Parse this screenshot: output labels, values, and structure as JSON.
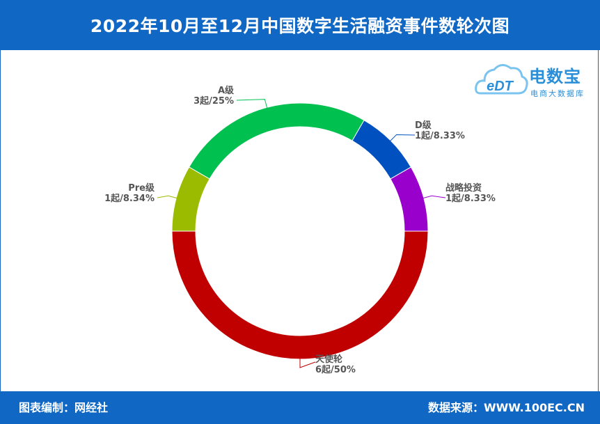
{
  "title": "2022年10月至12月中国数字生活融资事件数轮次图",
  "footer": {
    "left": "图表编制：网经社",
    "right": "数据来源：WWW.100EC.CN"
  },
  "logo": {
    "brand": "电数宝",
    "sub": "电商大数据库",
    "mark": "eDT"
  },
  "chart_data": {
    "type": "pie",
    "donut": true,
    "title": "2022年10月至12月中国数字生活融资事件数轮次图",
    "slices": [
      {
        "name": "天使轮",
        "count": 6,
        "count_label": "6起",
        "percent": 50,
        "percent_label": "50%",
        "color": "#c00000"
      },
      {
        "name": "Pre级",
        "count": 1,
        "count_label": "1起",
        "percent": 8.34,
        "percent_label": "8.34%",
        "color": "#9bbb00"
      },
      {
        "name": "A级",
        "count": 3,
        "count_label": "3起",
        "percent": 25,
        "percent_label": "25%",
        "color": "#00c050"
      },
      {
        "name": "D级",
        "count": 1,
        "count_label": "1起",
        "percent": 8.33,
        "percent_label": "8.33%",
        "color": "#0050c0"
      },
      {
        "name": "战略投资",
        "count": 1,
        "count_label": "1起",
        "percent": 8.33,
        "percent_label": "8.33%",
        "color": "#9900cc"
      }
    ]
  }
}
